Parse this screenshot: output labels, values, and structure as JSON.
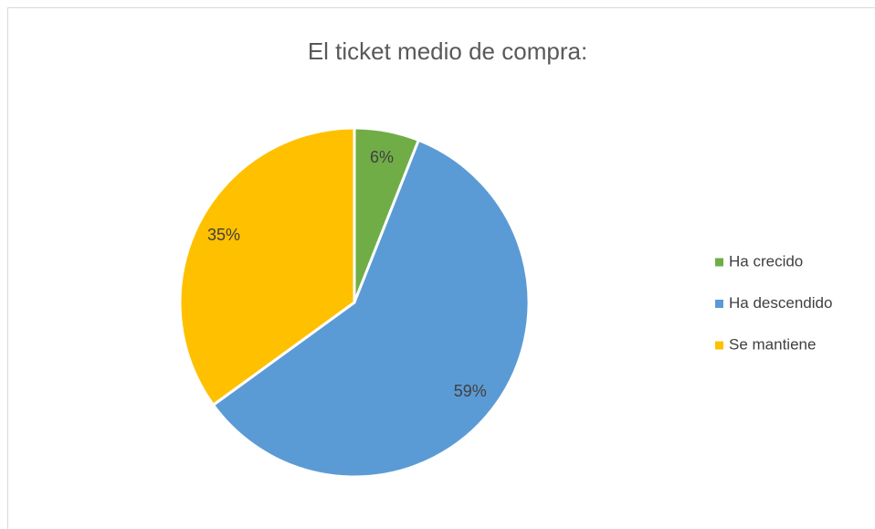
{
  "chart_data": {
    "type": "pie",
    "title": "El ticket medio de compra:",
    "categories": [
      "Ha crecido",
      "Ha descendido",
      "Se mantiene"
    ],
    "values": [
      6,
      59,
      35
    ],
    "value_labels": [
      "6%",
      "59%",
      "35%"
    ],
    "colors": [
      "#70ad47",
      "#5b9bd5",
      "#ffc000"
    ],
    "legend": "right"
  }
}
